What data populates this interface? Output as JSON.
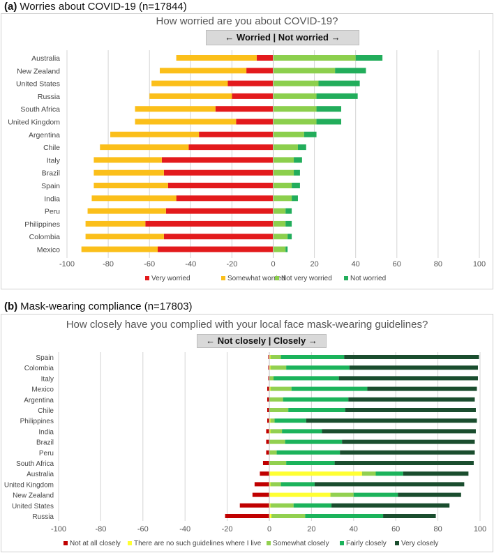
{
  "panel_a": {
    "heading_letter": "(a)",
    "heading_text": "Worries about COVID-19 (n=17844)",
    "question": "How worried are you about COVID-19?",
    "divider_label": "← Worried | Not worried →"
  },
  "panel_b": {
    "heading_letter": "(b)",
    "heading_text": "Mask-wearing compliance (n=17803)",
    "question": "How closely have you complied with your local face mask-wearing guidelines?",
    "divider_label": "← Not closely | Closely →"
  },
  "chart_data": [
    {
      "type": "bar",
      "orientation": "horizontal",
      "stacked": "diverging",
      "title": "How worried are you about COVID-19?",
      "xlim": [
        -100,
        100
      ],
      "xticks": [
        -100,
        -80,
        -60,
        -40,
        -20,
        0,
        20,
        40,
        60,
        80,
        100
      ],
      "xtick_labels": [
        "-100",
        "-80",
        "-60",
        "-40",
        "-20",
        "0",
        "20",
        "40",
        "60",
        "80",
        "100"
      ],
      "grid": true,
      "legend": "bottom",
      "categories": [
        "Australia",
        "New Zealand",
        "United States",
        "Russia",
        "South Africa",
        "United Kingdom",
        "Argentina",
        "Chile",
        "Italy",
        "Brazil",
        "Spain",
        "India",
        "Peru",
        "Philippines",
        "Colombia",
        "Mexico"
      ],
      "series": [
        {
          "name": "Very worried",
          "color": "#e31a1c",
          "side": "negative",
          "values": [
            8,
            13,
            22,
            20,
            28,
            18,
            36,
            41,
            54,
            53,
            51,
            47,
            52,
            62,
            53,
            56
          ]
        },
        {
          "name": "Somewhat worried",
          "color": "#fbbf1a",
          "side": "negative",
          "values": [
            39,
            42,
            37,
            40,
            39,
            49,
            43,
            43,
            33,
            34,
            36,
            41,
            38,
            29,
            38,
            37
          ]
        },
        {
          "name": "Not very worried",
          "color": "#8ccf4d",
          "side": "positive",
          "values": [
            40,
            30,
            22,
            21,
            21,
            21,
            15,
            12,
            10,
            10,
            9,
            9,
            6,
            6,
            7,
            6
          ]
        },
        {
          "name": "Not worried",
          "color": "#22ad5b",
          "side": "positive",
          "values": [
            13,
            15,
            20,
            20,
            12,
            12,
            6,
            4,
            4,
            3,
            4,
            3,
            3,
            3,
            2,
            1
          ]
        }
      ]
    },
    {
      "type": "bar",
      "orientation": "horizontal",
      "stacked": "diverging",
      "title": "How closely have you complied with your local face mask-wearing guidelines?",
      "xlim": [
        -100,
        100
      ],
      "xticks": [
        -100,
        -80,
        -60,
        -40,
        -20,
        0,
        20,
        40,
        60,
        80,
        100
      ],
      "xtick_labels": [
        "-100",
        "-80",
        "-60",
        "-40",
        "-20",
        "0",
        "20",
        "40",
        "60",
        "80",
        "100"
      ],
      "grid": true,
      "legend": "bottom",
      "categories": [
        "Spain",
        "Colombia",
        "Italy",
        "Mexico",
        "Argentina",
        "Chile",
        "Philippines",
        "India",
        "Brazil",
        "Peru",
        "South Africa",
        "Australia",
        "United Kingdom",
        "New Zealand",
        "United States",
        "Russia"
      ],
      "series": [
        {
          "name": "Not at all closely",
          "color": "#c00000",
          "side": "negative",
          "values": [
            0.5,
            0.5,
            0.5,
            1,
            1,
            1,
            1,
            1.5,
            1.5,
            1.5,
            3,
            4.5,
            7,
            8,
            14,
            21
          ]
        },
        {
          "name": "There are no such guidelines where I live",
          "color": "#ffff33",
          "side": "positive",
          "values": [
            0.5,
            0.5,
            0,
            0.5,
            0,
            0,
            0.5,
            0.5,
            0,
            0,
            0,
            44,
            0.5,
            29,
            0.5,
            1
          ]
        },
        {
          "name": "Somewhat closely",
          "color": "#92d050",
          "side": "positive",
          "values": [
            5,
            7.5,
            2,
            10,
            6.5,
            9,
            2,
            5.5,
            7.5,
            3.5,
            8,
            6.5,
            5,
            11,
            11,
            16
          ]
        },
        {
          "name": "Fairly closely",
          "color": "#1bb35b",
          "side": "positive",
          "values": [
            30,
            30,
            31,
            36,
            31,
            27,
            15,
            19,
            27,
            30,
            23,
            13,
            16,
            21,
            18,
            37
          ]
        },
        {
          "name": "Very closely",
          "color": "#1a4d2e",
          "side": "positive",
          "values": [
            64,
            61,
            66,
            52,
            60,
            62,
            81,
            73,
            63,
            64,
            66,
            31,
            71,
            30,
            56,
            25
          ]
        }
      ]
    }
  ]
}
